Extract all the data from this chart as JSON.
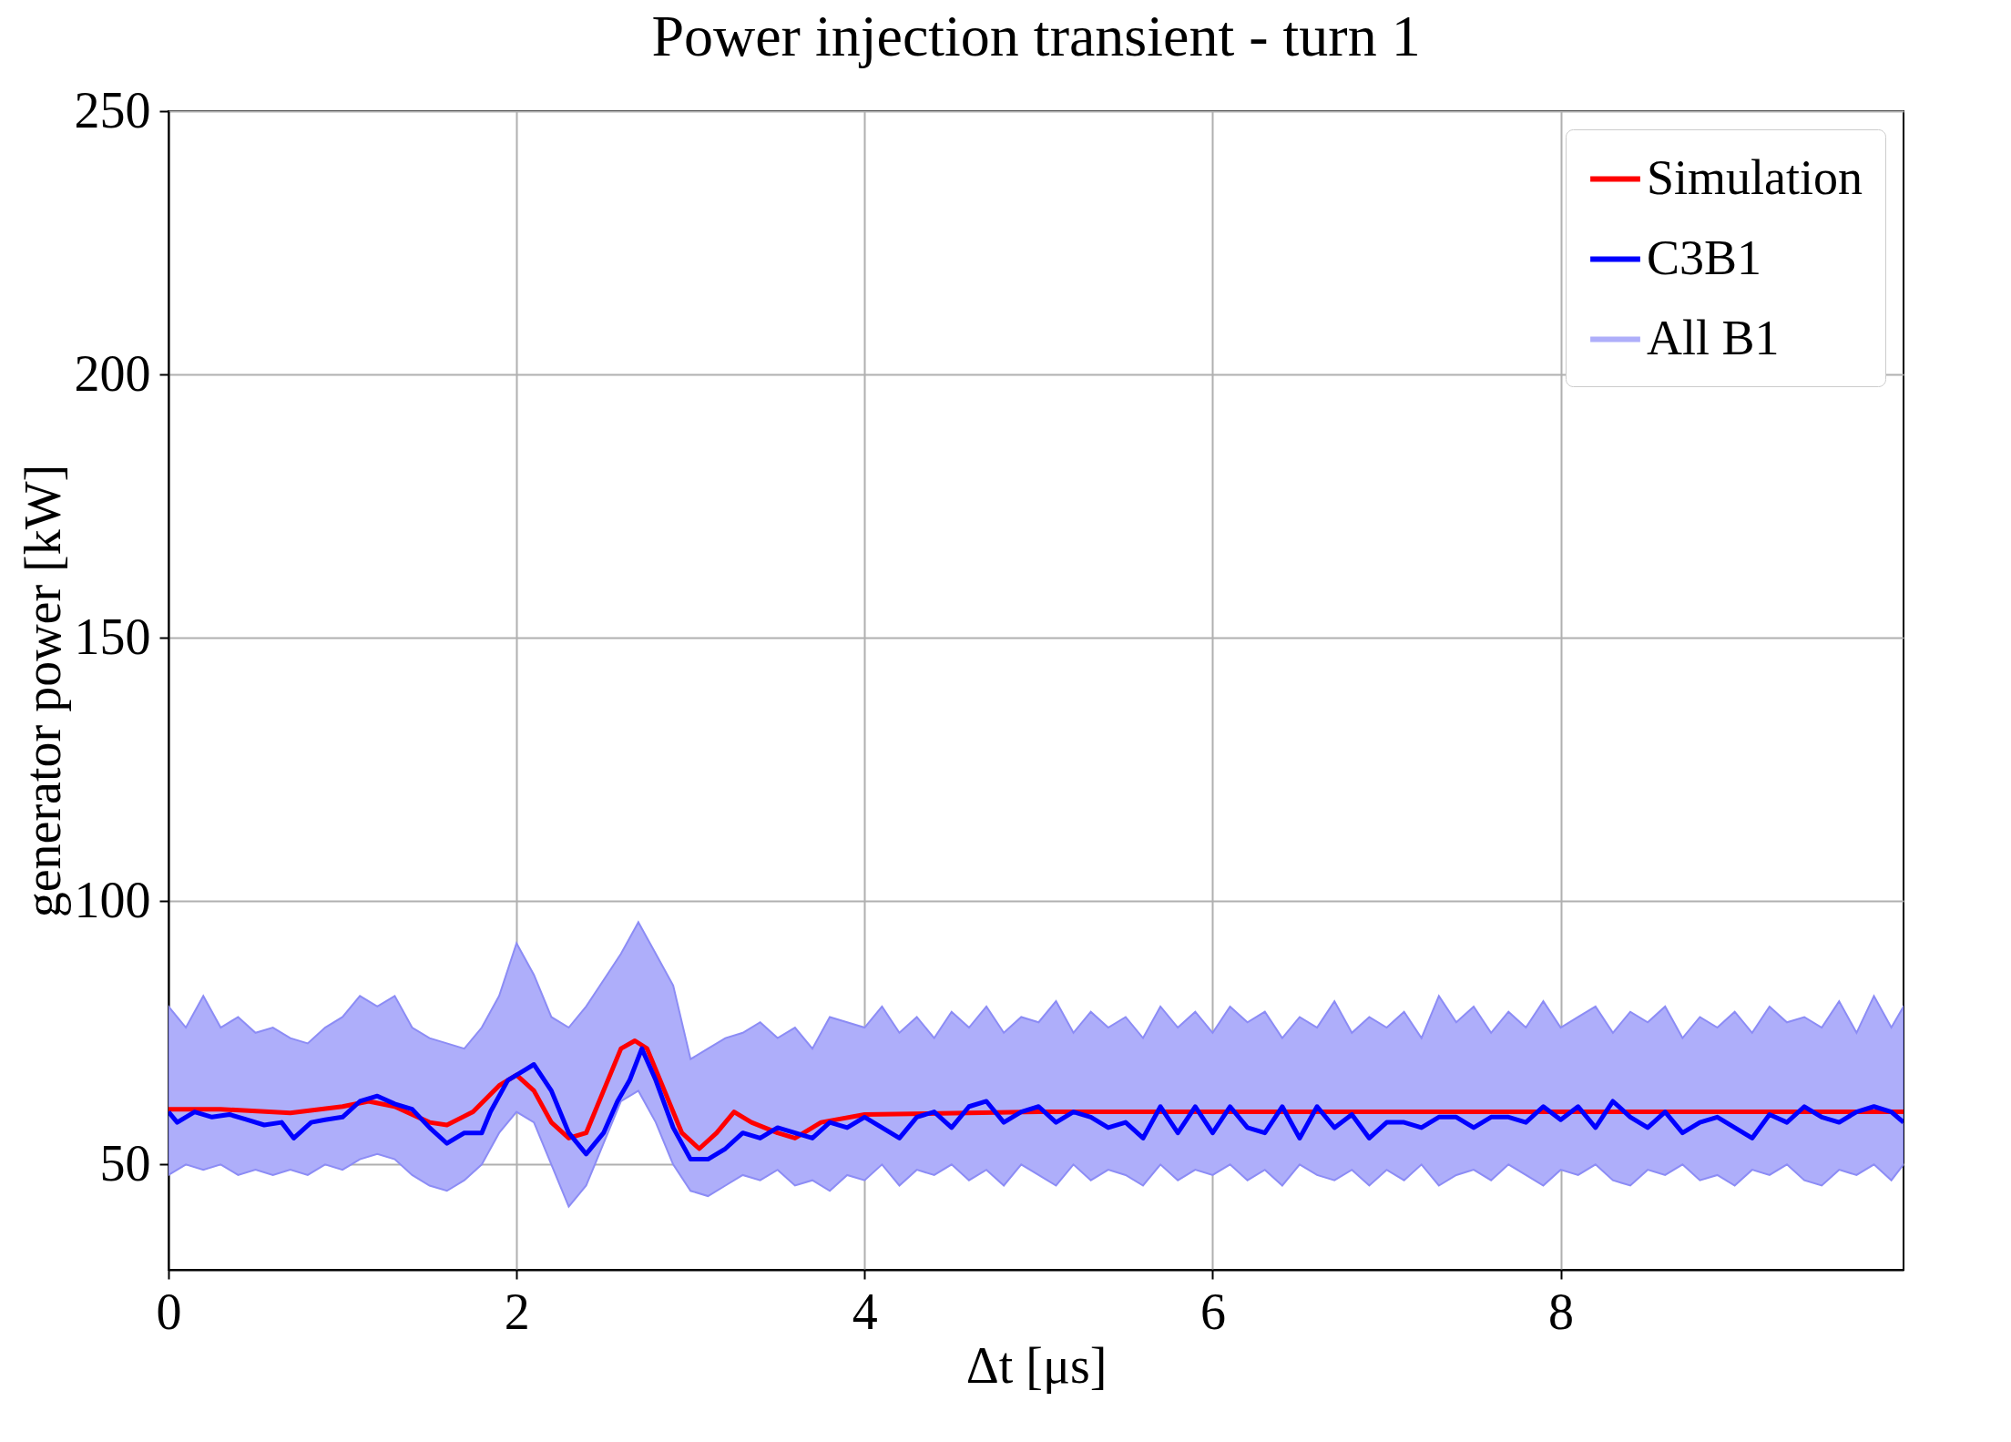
{
  "chart_data": {
    "type": "line",
    "title": "Power injection transient - turn 1",
    "xlabel": "Δt [μs]",
    "ylabel": "generator power [kW]",
    "xlim": [
      0,
      9.97
    ],
    "xticks": [
      0,
      2,
      4,
      6,
      8
    ],
    "ylim": [
      30,
      250
    ],
    "yticks": [
      50,
      100,
      150,
      200,
      250
    ],
    "grid": true,
    "legend": "top right",
    "series": [
      {
        "name": "Simulation",
        "color": "#ff0000",
        "x": [
          0,
          0.3,
          0.7,
          1.0,
          1.15,
          1.3,
          1.5,
          1.6,
          1.75,
          1.9,
          2.0,
          2.1,
          2.2,
          2.3,
          2.4,
          2.5,
          2.6,
          2.68,
          2.75,
          2.85,
          2.95,
          3.05,
          3.15,
          3.25,
          3.35,
          3.5,
          3.6,
          3.75,
          4,
          5,
          6,
          7,
          8,
          9,
          9.97
        ],
        "values": [
          60.5,
          60.5,
          59.8,
          61,
          62,
          61,
          58,
          57.5,
          60,
          65,
          67,
          64,
          58,
          55,
          56,
          64,
          72,
          73.5,
          72,
          64,
          56,
          53,
          56,
          60,
          58,
          56,
          55,
          58,
          59.5,
          60,
          60,
          60,
          60,
          60,
          60
        ]
      },
      {
        "name": "C3B1",
        "color": "#0000ff",
        "x": [
          0,
          0.05,
          0.15,
          0.25,
          0.35,
          0.45,
          0.55,
          0.65,
          0.72,
          0.82,
          0.9,
          1.0,
          1.1,
          1.2,
          1.3,
          1.4,
          1.5,
          1.6,
          1.7,
          1.8,
          1.85,
          1.95,
          2.05,
          2.1,
          2.2,
          2.3,
          2.4,
          2.5,
          2.58,
          2.65,
          2.72,
          2.8,
          2.9,
          3.0,
          3.1,
          3.2,
          3.3,
          3.4,
          3.5,
          3.6,
          3.7,
          3.8,
          3.9,
          4.0,
          4.1,
          4.2,
          4.3,
          4.4,
          4.5,
          4.6,
          4.7,
          4.8,
          4.9,
          5.0,
          5.1,
          5.2,
          5.3,
          5.4,
          5.5,
          5.6,
          5.7,
          5.8,
          5.9,
          6.0,
          6.1,
          6.2,
          6.3,
          6.4,
          6.5,
          6.6,
          6.7,
          6.8,
          6.9,
          7.0,
          7.1,
          7.2,
          7.3,
          7.4,
          7.5,
          7.6,
          7.7,
          7.8,
          7.9,
          8.0,
          8.1,
          8.2,
          8.3,
          8.4,
          8.5,
          8.6,
          8.7,
          8.8,
          8.9,
          9.0,
          9.1,
          9.2,
          9.3,
          9.4,
          9.5,
          9.6,
          9.7,
          9.8,
          9.9,
          9.97
        ],
        "values": [
          60,
          58,
          60,
          59,
          59.5,
          58.5,
          57.5,
          58,
          55,
          58,
          58.5,
          59,
          62,
          63,
          61.5,
          60.5,
          57,
          54,
          56,
          56,
          60,
          66,
          68,
          69,
          64,
          56,
          52,
          56,
          62,
          66,
          72,
          66,
          57,
          51,
          51,
          53,
          56,
          55,
          57,
          56,
          55,
          58,
          57,
          59,
          57,
          55,
          59,
          60,
          57,
          61,
          62,
          58,
          60,
          61,
          58,
          60,
          59,
          57,
          58,
          55,
          61,
          56,
          61,
          56,
          61,
          57,
          56,
          61,
          55,
          61,
          57,
          59.5,
          55,
          58,
          58,
          57,
          59,
          59,
          57,
          59,
          59,
          58,
          61,
          58.5,
          61,
          57,
          62,
          59,
          57,
          60,
          56,
          58,
          59,
          57,
          55,
          59.5,
          58,
          61,
          59,
          58,
          60,
          61,
          60,
          58
        ]
      },
      {
        "name": "All B1",
        "type": "area",
        "color": "#aeaefa",
        "x": [
          0,
          0.1,
          0.2,
          0.3,
          0.4,
          0.5,
          0.6,
          0.7,
          0.8,
          0.9,
          1.0,
          1.1,
          1.2,
          1.3,
          1.4,
          1.5,
          1.6,
          1.7,
          1.8,
          1.9,
          2.0,
          2.1,
          2.2,
          2.3,
          2.4,
          2.5,
          2.6,
          2.7,
          2.8,
          2.9,
          3.0,
          3.1,
          3.2,
          3.3,
          3.4,
          3.5,
          3.6,
          3.7,
          3.8,
          3.9,
          4.0,
          4.1,
          4.2,
          4.3,
          4.4,
          4.5,
          4.6,
          4.7,
          4.8,
          4.9,
          5.0,
          5.1,
          5.2,
          5.3,
          5.4,
          5.5,
          5.6,
          5.7,
          5.8,
          5.9,
          6.0,
          6.1,
          6.2,
          6.3,
          6.4,
          6.5,
          6.6,
          6.7,
          6.8,
          6.9,
          7.0,
          7.1,
          7.2,
          7.3,
          7.4,
          7.5,
          7.6,
          7.7,
          7.8,
          7.9,
          8.0,
          8.1,
          8.2,
          8.3,
          8.4,
          8.5,
          8.6,
          8.7,
          8.8,
          8.9,
          9.0,
          9.1,
          9.2,
          9.3,
          9.4,
          9.5,
          9.6,
          9.7,
          9.8,
          9.9,
          9.97
        ],
        "values": [
          null,
          null,
          null,
          null,
          null,
          null,
          null,
          null,
          null,
          null,
          null,
          null,
          null,
          null,
          null,
          null,
          null,
          null,
          null,
          null,
          null,
          null,
          null,
          null,
          null,
          null,
          null,
          null,
          null,
          null,
          null,
          null,
          null,
          null,
          null,
          null,
          null,
          null,
          null,
          null,
          null,
          null,
          null,
          null,
          null,
          null,
          null,
          null,
          null,
          null,
          null,
          null,
          null,
          null,
          null,
          null,
          null,
          null,
          null,
          null,
          null,
          null,
          null,
          null,
          null,
          null,
          null,
          null,
          null,
          null,
          null,
          null,
          null,
          null,
          null,
          null,
          null,
          null,
          null,
          null,
          null,
          null,
          null,
          null,
          null,
          null,
          null,
          null,
          null,
          null,
          null,
          null,
          null,
          null,
          null,
          null,
          null,
          null,
          null,
          null,
          null
        ],
        "upper": [
          80,
          76,
          82,
          76,
          78,
          75,
          76,
          74,
          73,
          76,
          78,
          82,
          80,
          82,
          76,
          74,
          73,
          72,
          76,
          82,
          92,
          86,
          78,
          76,
          80,
          85,
          90,
          96,
          90,
          84,
          70,
          72,
          74,
          75,
          77,
          74,
          76,
          72,
          78,
          77,
          76,
          80,
          75,
          78,
          74,
          79,
          76,
          80,
          75,
          78,
          77,
          81,
          75,
          79,
          76,
          78,
          74,
          80,
          76,
          79,
          75,
          80,
          77,
          79,
          74,
          78,
          76,
          81,
          75,
          78,
          76,
          79,
          74,
          82,
          77,
          80,
          75,
          79,
          76,
          81,
          76,
          78,
          80,
          75,
          79,
          77,
          80,
          74,
          78,
          76,
          79,
          75,
          80,
          77,
          78,
          76,
          81,
          75,
          82,
          76,
          80
        ],
        "lower": [
          48,
          50,
          49,
          50,
          48,
          49,
          48,
          49,
          48,
          50,
          49,
          51,
          52,
          51,
          48,
          46,
          45,
          47,
          50,
          56,
          60,
          58,
          50,
          42,
          46,
          54,
          62,
          64,
          58,
          50,
          45,
          44,
          46,
          48,
          47,
          49,
          46,
          47,
          45,
          48,
          47,
          50,
          46,
          49,
          48,
          50,
          47,
          49,
          46,
          50,
          48,
          46,
          50,
          47,
          49,
          48,
          46,
          50,
          47,
          49,
          48,
          50,
          47,
          49,
          46,
          50,
          48,
          47,
          49,
          46,
          49,
          47,
          50,
          46,
          48,
          49,
          47,
          50,
          48,
          46,
          49,
          48,
          50,
          47,
          46,
          49,
          48,
          50,
          47,
          48,
          46,
          49,
          48,
          50,
          47,
          46,
          49,
          48,
          50,
          47,
          50
        ]
      }
    ]
  }
}
